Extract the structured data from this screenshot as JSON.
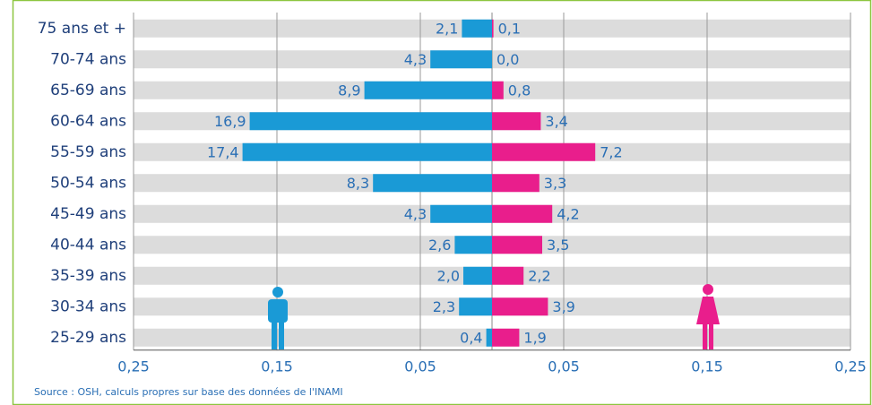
{
  "chart_data": {
    "type": "pyramid",
    "categories": [
      "75 ans et +",
      "70-74 ans",
      "65-69 ans",
      "60-64 ans",
      "55-59 ans",
      "50-54 ans",
      "45-49 ans",
      "40-44 ans",
      "35-39 ans",
      "30-34 ans",
      "25-29 ans"
    ],
    "series": [
      {
        "color": "#1a9ad6",
        "side": "left",
        "values": [
          0.021,
          0.043,
          0.089,
          0.169,
          0.174,
          0.083,
          0.043,
          0.026,
          0.02,
          0.023,
          0.004
        ],
        "value_labels": [
          "2,1",
          "4,3",
          "8,9",
          "16,9",
          "17,4",
          "8,3",
          "4,3",
          "2,6",
          "2,0",
          "2,3",
          "0,4"
        ]
      },
      {
        "color": "#e91e8c",
        "side": "right",
        "values": [
          0.001,
          0.0,
          0.008,
          0.034,
          0.072,
          0.033,
          0.042,
          0.035,
          0.022,
          0.039,
          0.019
        ],
        "value_labels": [
          "0,1",
          "0,0",
          "0,8",
          "3,4",
          "7,2",
          "3,3",
          "4,2",
          "3,5",
          "2,2",
          "3,9",
          "1,9"
        ]
      }
    ],
    "xlim": [
      -0.25,
      0.25
    ],
    "xticks": [
      {
        "value": -0.25,
        "label": "0,25"
      },
      {
        "value": -0.15,
        "label": "0,15"
      },
      {
        "value": -0.05,
        "label": "0,05"
      },
      {
        "value": 0.05,
        "label": "0,05"
      },
      {
        "value": 0.15,
        "label": "0,15"
      },
      {
        "value": 0.25,
        "label": "0,25"
      }
    ],
    "grid": true,
    "source": "Source : OSH, calculs propres sur base des données de l'INAMI"
  }
}
